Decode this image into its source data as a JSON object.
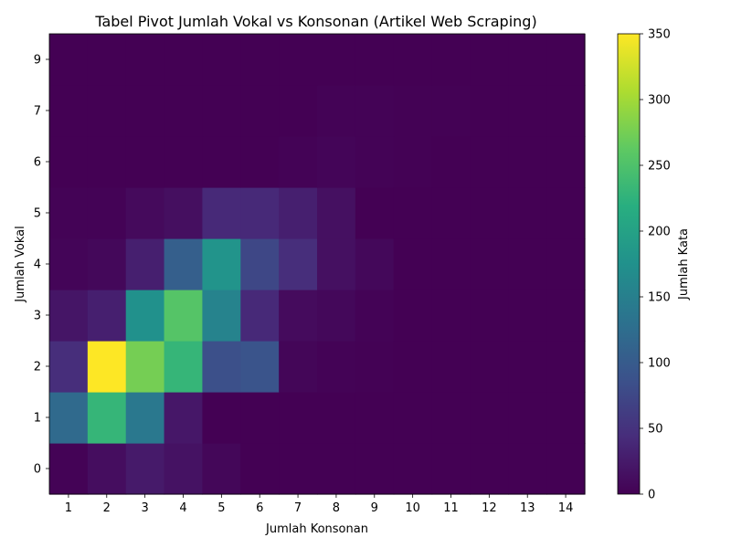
{
  "chart_data": {
    "type": "heatmap",
    "title": "Tabel Pivot Jumlah Vokal vs Konsonan (Artikel Web Scraping)",
    "xlabel": "Jumlah Konsonan",
    "ylabel": "Jumlah Vokal",
    "x_categories": [
      "1",
      "2",
      "3",
      "4",
      "5",
      "6",
      "7",
      "8",
      "9",
      "10",
      "11",
      "12",
      "13",
      "14"
    ],
    "y_categories": [
      "0",
      "1",
      "2",
      "3",
      "4",
      "5",
      "6",
      "7",
      "9"
    ],
    "values": [
      [
        2,
        12,
        25,
        17,
        6,
        0,
        0,
        0,
        0,
        0,
        0,
        0,
        0,
        0
      ],
      [
        120,
        230,
        140,
        22,
        0,
        0,
        0,
        0,
        0,
        0,
        0,
        0,
        0,
        0
      ],
      [
        45,
        350,
        275,
        230,
        85,
        90,
        5,
        2,
        1,
        0,
        0,
        0,
        0,
        0
      ],
      [
        20,
        30,
        175,
        255,
        155,
        40,
        10,
        7,
        2,
        0,
        0,
        0,
        0,
        0
      ],
      [
        4,
        7,
        30,
        105,
        180,
        75,
        45,
        15,
        7,
        0,
        0,
        0,
        0,
        0
      ],
      [
        2,
        2,
        9,
        14,
        40,
        40,
        30,
        15,
        0,
        0,
        0,
        0,
        0,
        0
      ],
      [
        0,
        0,
        0,
        0,
        0,
        0,
        2,
        4,
        2,
        1,
        0,
        0,
        0,
        0
      ],
      [
        0,
        0,
        0,
        0,
        0,
        0,
        0,
        2,
        2,
        1,
        1,
        0,
        0,
        0
      ],
      [
        0,
        0,
        0,
        0,
        0,
        0,
        0,
        0,
        0,
        0,
        0,
        0,
        0,
        0
      ]
    ],
    "vmin": 0,
    "vmax": 350,
    "colormap": "viridis",
    "colorbar": {
      "label": "Jumlah Kata",
      "ticks": [
        0,
        50,
        100,
        150,
        200,
        250,
        300,
        350
      ]
    }
  }
}
